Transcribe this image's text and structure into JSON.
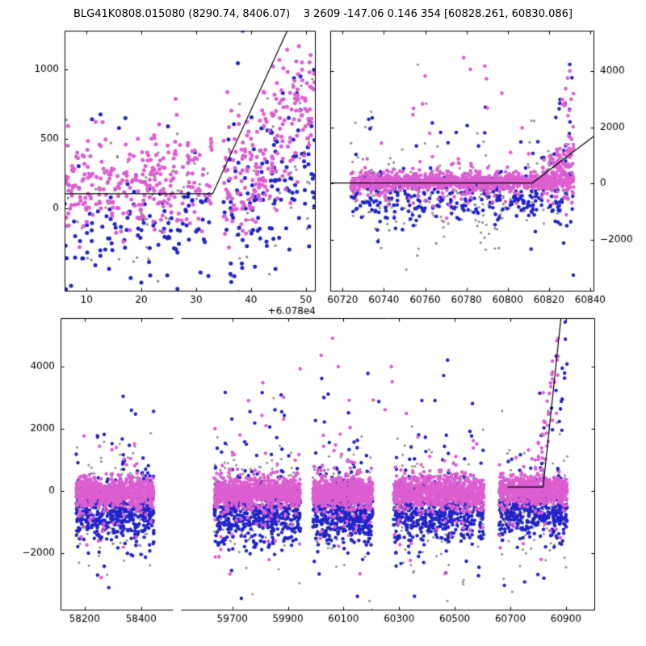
{
  "title": "BLG41K0808.015080 (8290.74, 8406.07)    3 2609 -147.06 0.146 354 [60828.261, 60830.086]",
  "colors": {
    "pink": "#dc5fd0",
    "blue": "#2323c8",
    "gray": "#8f8f8f",
    "line": "#000000",
    "axis": "#000000",
    "text": "#000000",
    "background": "#ffffff"
  },
  "chart_data": [
    {
      "id": "recent-zoom",
      "type": "scatter",
      "xlim": [
        6,
        51.8
      ],
      "ylim": [
        -600,
        1280
      ],
      "xticks": [
        10,
        20,
        30,
        40,
        50
      ],
      "yticks": [
        0,
        500,
        1000
      ],
      "ytick_side": "left",
      "x_offset_label": "+6.078e4",
      "model_line": [
        [
          6,
          105
        ],
        [
          33,
          105
        ],
        [
          48,
          1400
        ]
      ],
      "series": [
        {
          "color": "gray",
          "size": 1.7,
          "clusters": [
            {
              "x": [
                6,
                33
              ],
              "n": 45,
              "y_mean": 30,
              "y_sd": 260
            },
            {
              "x": [
                35,
                51.8
              ],
              "n": 45,
              "y_trend": [
                0,
                400
              ],
              "y_sd": 320
            }
          ]
        },
        {
          "color": "blue",
          "size": 2.5,
          "clusters": [
            {
              "x": [
                6,
                33
              ],
              "n": 115,
              "y_mean": -140,
              "y_sd": 210
            },
            {
              "x": [
                6,
                33
              ],
              "n": 5,
              "y_mean": 620,
              "y_sd": 140
            },
            {
              "x": [
                35,
                51.8
              ],
              "n": 135,
              "y_trend": [
                -100,
                430
              ],
              "y_sd": 300
            },
            {
              "x": [
                36,
                40
              ],
              "n": 2,
              "y_mean": 1100,
              "y_sd": 80
            }
          ]
        },
        {
          "color": "pink",
          "size": 2.5,
          "clusters": [
            {
              "x": [
                6,
                33
              ],
              "n": 275,
              "y_mean": 170,
              "y_sd": 175
            },
            {
              "x": [
                35,
                51.8
              ],
              "n": 225,
              "y_trend": [
                120,
                840
              ],
              "y_sd": 240
            }
          ]
        }
      ]
    },
    {
      "id": "current-season",
      "type": "scatter",
      "xlim": [
        60714,
        60842
      ],
      "ylim": [
        -3850,
        5450
      ],
      "xticks": [
        60720,
        60740,
        60760,
        60780,
        60800,
        60820,
        60840
      ],
      "yticks": [
        -2000,
        0,
        2000,
        4000
      ],
      "ytick_side": "right",
      "model_line": [
        [
          60714,
          20
        ],
        [
          60812,
          20
        ],
        [
          60842,
          1700
        ]
      ],
      "series": [
        {
          "color": "gray",
          "size": 1.6,
          "clusters": [
            {
              "x": [
                60724,
                60832
              ],
              "n": 230,
              "y_mean": -350,
              "y_sd": 700
            },
            {
              "x": [
                60724,
                60832
              ],
              "n": 28,
              "y_mean": 600,
              "y_sd": 1600
            },
            {
              "x": [
                60786,
                60794
              ],
              "n": 10,
              "y_mean": -1800,
              "y_sd": 800
            }
          ]
        },
        {
          "color": "blue",
          "size": 2.3,
          "clusters": [
            {
              "x": [
                60724,
                60832
              ],
              "n": 310,
              "y_mean": -450,
              "y_sd": 420
            },
            {
              "x": [
                60724,
                60832
              ],
              "n": 30,
              "y_mean": 400,
              "y_sd": 1500
            },
            {
              "x": [
                60800,
                60832
              ],
              "n": 25,
              "y_trend": [
                -400,
                1200
              ],
              "y_sd": 900
            },
            {
              "x": [
                60824,
                60832
              ],
              "n": 14,
              "y_mean": 800,
              "y_sd": 1800
            }
          ]
        },
        {
          "color": "pink",
          "size": 2.3,
          "clusters": [
            {
              "x": [
                60724,
                60832
              ],
              "n": 880,
              "y_mean": 60,
              "y_sd": 140
            },
            {
              "x": [
                60724,
                60832
              ],
              "n": 160,
              "y_mean": 0,
              "y_sd": 430
            },
            {
              "x": [
                60724,
                60832
              ],
              "n": 16,
              "y_mean": 2600,
              "y_sd": 1100
            },
            {
              "x": [
                60816,
                60832
              ],
              "n": 80,
              "y_trend": [
                150,
                1100
              ],
              "y_sd": 320
            },
            {
              "x": [
                60824,
                60832
              ],
              "n": 26,
              "y_mean": 1500,
              "y_sd": 1400
            }
          ]
        }
      ]
    },
    {
      "id": "full-baseline",
      "type": "scatter",
      "segments": [
        {
          "xlim": [
            58115,
            58515
          ],
          "width_frac": 0.214
        },
        {
          "xlim": [
            59515,
            61005
          ],
          "width_frac": 0.786
        }
      ],
      "ylim": [
        -3850,
        5550
      ],
      "xticks_seg": [
        [
          58200,
          58400
        ],
        [
          59700,
          59900,
          60100,
          60300,
          60500,
          60700,
          60900
        ]
      ],
      "yticks": [
        -2000,
        0,
        2000,
        4000
      ],
      "ytick_side": "left",
      "model_line": [
        [
          60690,
          120
        ],
        [
          60818,
          120
        ],
        [
          60885,
          5800
        ]
      ],
      "series": [
        {
          "color": "gray",
          "size": 1.5,
          "clusters": [
            {
              "x": [
                58170,
                58445
              ],
              "n": 130,
              "y_mean": -400,
              "y_sd": 800
            },
            {
              "x": [
                58170,
                58445
              ],
              "n": 20,
              "y_mean": -600,
              "y_sd": 1600
            },
            {
              "x": [
                59635,
                59945
              ],
              "n": 150,
              "y_mean": -400,
              "y_sd": 800
            },
            {
              "x": [
                59635,
                59945
              ],
              "n": 22,
              "y_mean": -600,
              "y_sd": 1600
            },
            {
              "x": [
                59990,
                60205
              ],
              "n": 120,
              "y_mean": -400,
              "y_sd": 800
            },
            {
              "x": [
                59990,
                60205
              ],
              "n": 18,
              "y_mean": -600,
              "y_sd": 1600
            },
            {
              "x": [
                60280,
                60605
              ],
              "n": 150,
              "y_mean": -400,
              "y_sd": 800
            },
            {
              "x": [
                60280,
                60605
              ],
              "n": 22,
              "y_mean": -600,
              "y_sd": 1600
            },
            {
              "x": [
                60660,
                60905
              ],
              "n": 110,
              "y_mean": -400,
              "y_sd": 800
            },
            {
              "x": [
                60660,
                60905
              ],
              "n": 18,
              "y_mean": -600,
              "y_sd": 1500
            },
            {
              "x": [
                60820,
                60905
              ],
              "n": 6,
              "y_mean": 2400,
              "y_sd": 300
            }
          ]
        },
        {
          "color": "blue",
          "size": 2.2,
          "clusters": [
            {
              "x": [
                58170,
                58445
              ],
              "n": 420,
              "y_mean": -700,
              "y_sd": 450
            },
            {
              "x": [
                58170,
                58445
              ],
              "n": 50,
              "y_mean": -500,
              "y_sd": 1300
            },
            {
              "x": [
                58170,
                58445
              ],
              "n": 12,
              "y_mean": 1400,
              "y_sd": 800
            },
            {
              "x": [
                59635,
                59945
              ],
              "n": 480,
              "y_mean": -700,
              "y_sd": 460
            },
            {
              "x": [
                59635,
                59945
              ],
              "n": 55,
              "y_mean": -500,
              "y_sd": 1300
            },
            {
              "x": [
                59635,
                59945
              ],
              "n": 14,
              "y_mean": 1500,
              "y_sd": 900
            },
            {
              "x": [
                59990,
                60205
              ],
              "n": 400,
              "y_mean": -700,
              "y_sd": 450
            },
            {
              "x": [
                59990,
                60205
              ],
              "n": 45,
              "y_mean": -500,
              "y_sd": 1300
            },
            {
              "x": [
                59990,
                60205
              ],
              "n": 10,
              "y_mean": 1500,
              "y_sd": 900
            },
            {
              "x": [
                60280,
                60605
              ],
              "n": 480,
              "y_mean": -700,
              "y_sd": 470
            },
            {
              "x": [
                60280,
                60605
              ],
              "n": 55,
              "y_mean": -600,
              "y_sd": 1400
            },
            {
              "x": [
                60280,
                60605
              ],
              "n": 14,
              "y_mean": 1500,
              "y_sd": 900
            },
            {
              "x": [
                60660,
                60905
              ],
              "n": 390,
              "y_mean": -650,
              "y_sd": 440
            },
            {
              "x": [
                60660,
                60905
              ],
              "n": 45,
              "y_mean": -500,
              "y_sd": 1200
            },
            {
              "x": [
                60790,
                60905
              ],
              "n": 20,
              "y_trend": [
                300,
                4000
              ],
              "y_sd": 1000
            },
            {
              "x": [
                59640,
                60600
              ],
              "n": 10,
              "y_mean": 3300,
              "y_sd": 800
            }
          ]
        },
        {
          "color": "pink",
          "size": 2.2,
          "clusters": [
            {
              "x": [
                58170,
                58445
              ],
              "n": 700,
              "y_mean": -50,
              "y_sd": 230
            },
            {
              "x": [
                58170,
                58445
              ],
              "n": 55,
              "y_mean": -100,
              "y_sd": 950
            },
            {
              "x": [
                59635,
                59945
              ],
              "n": 800,
              "y_mean": -50,
              "y_sd": 240
            },
            {
              "x": [
                59635,
                59945
              ],
              "n": 65,
              "y_mean": -150,
              "y_sd": 1000
            },
            {
              "x": [
                59990,
                60205
              ],
              "n": 650,
              "y_mean": -50,
              "y_sd": 240
            },
            {
              "x": [
                59990,
                60205
              ],
              "n": 55,
              "y_mean": -100,
              "y_sd": 1050
            },
            {
              "x": [
                60280,
                60605
              ],
              "n": 800,
              "y_mean": -50,
              "y_sd": 250
            },
            {
              "x": [
                60280,
                60605
              ],
              "n": 65,
              "y_mean": -150,
              "y_sd": 1050
            },
            {
              "x": [
                60660,
                60905
              ],
              "n": 600,
              "y_mean": 0,
              "y_sd": 230
            },
            {
              "x": [
                60660,
                60905
              ],
              "n": 45,
              "y_mean": 0,
              "y_sd": 900
            },
            {
              "x": [
                60795,
                60875
              ],
              "n": 40,
              "y_trend": [
                200,
                4800
              ],
              "y_sd": 600
            },
            {
              "x": [
                59640,
                60600
              ],
              "n": 14,
              "y_mean": 3400,
              "y_sd": 800
            }
          ]
        }
      ]
    }
  ]
}
